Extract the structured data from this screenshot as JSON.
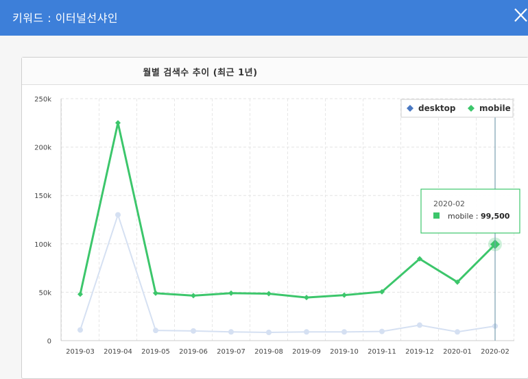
{
  "modal": {
    "title": "키워드 : 이터널선샤인",
    "close_icon": "close-icon"
  },
  "card": {
    "title": "월별 검색수 추이 (최근 1년)"
  },
  "chart_data": {
    "type": "line",
    "categories": [
      "2019-03",
      "2019-04",
      "2019-05",
      "2019-06",
      "2019-07",
      "2019-08",
      "2019-09",
      "2019-10",
      "2019-11",
      "2019-12",
      "2020-01",
      "2020-02"
    ],
    "series": [
      {
        "name": "desktop",
        "color": "#4a78c2",
        "values": [
          11000,
          130000,
          10500,
          10000,
          9000,
          8500,
          9000,
          9000,
          9500,
          16000,
          9000,
          15000
        ]
      },
      {
        "name": "mobile",
        "color": "#3cc66b",
        "values": [
          48000,
          225000,
          49000,
          46500,
          49000,
          48500,
          44500,
          47000,
          50500,
          84500,
          60500,
          99500
        ]
      }
    ],
    "y_ticks": [
      "0",
      "50k",
      "100k",
      "150k",
      "200k",
      "250k"
    ],
    "ylim": [
      0,
      250000
    ],
    "grid": true,
    "legend_position": "top-right",
    "tooltip": {
      "date": "2020-02",
      "label": "mobile",
      "separator": ":",
      "value": "99,500"
    }
  }
}
